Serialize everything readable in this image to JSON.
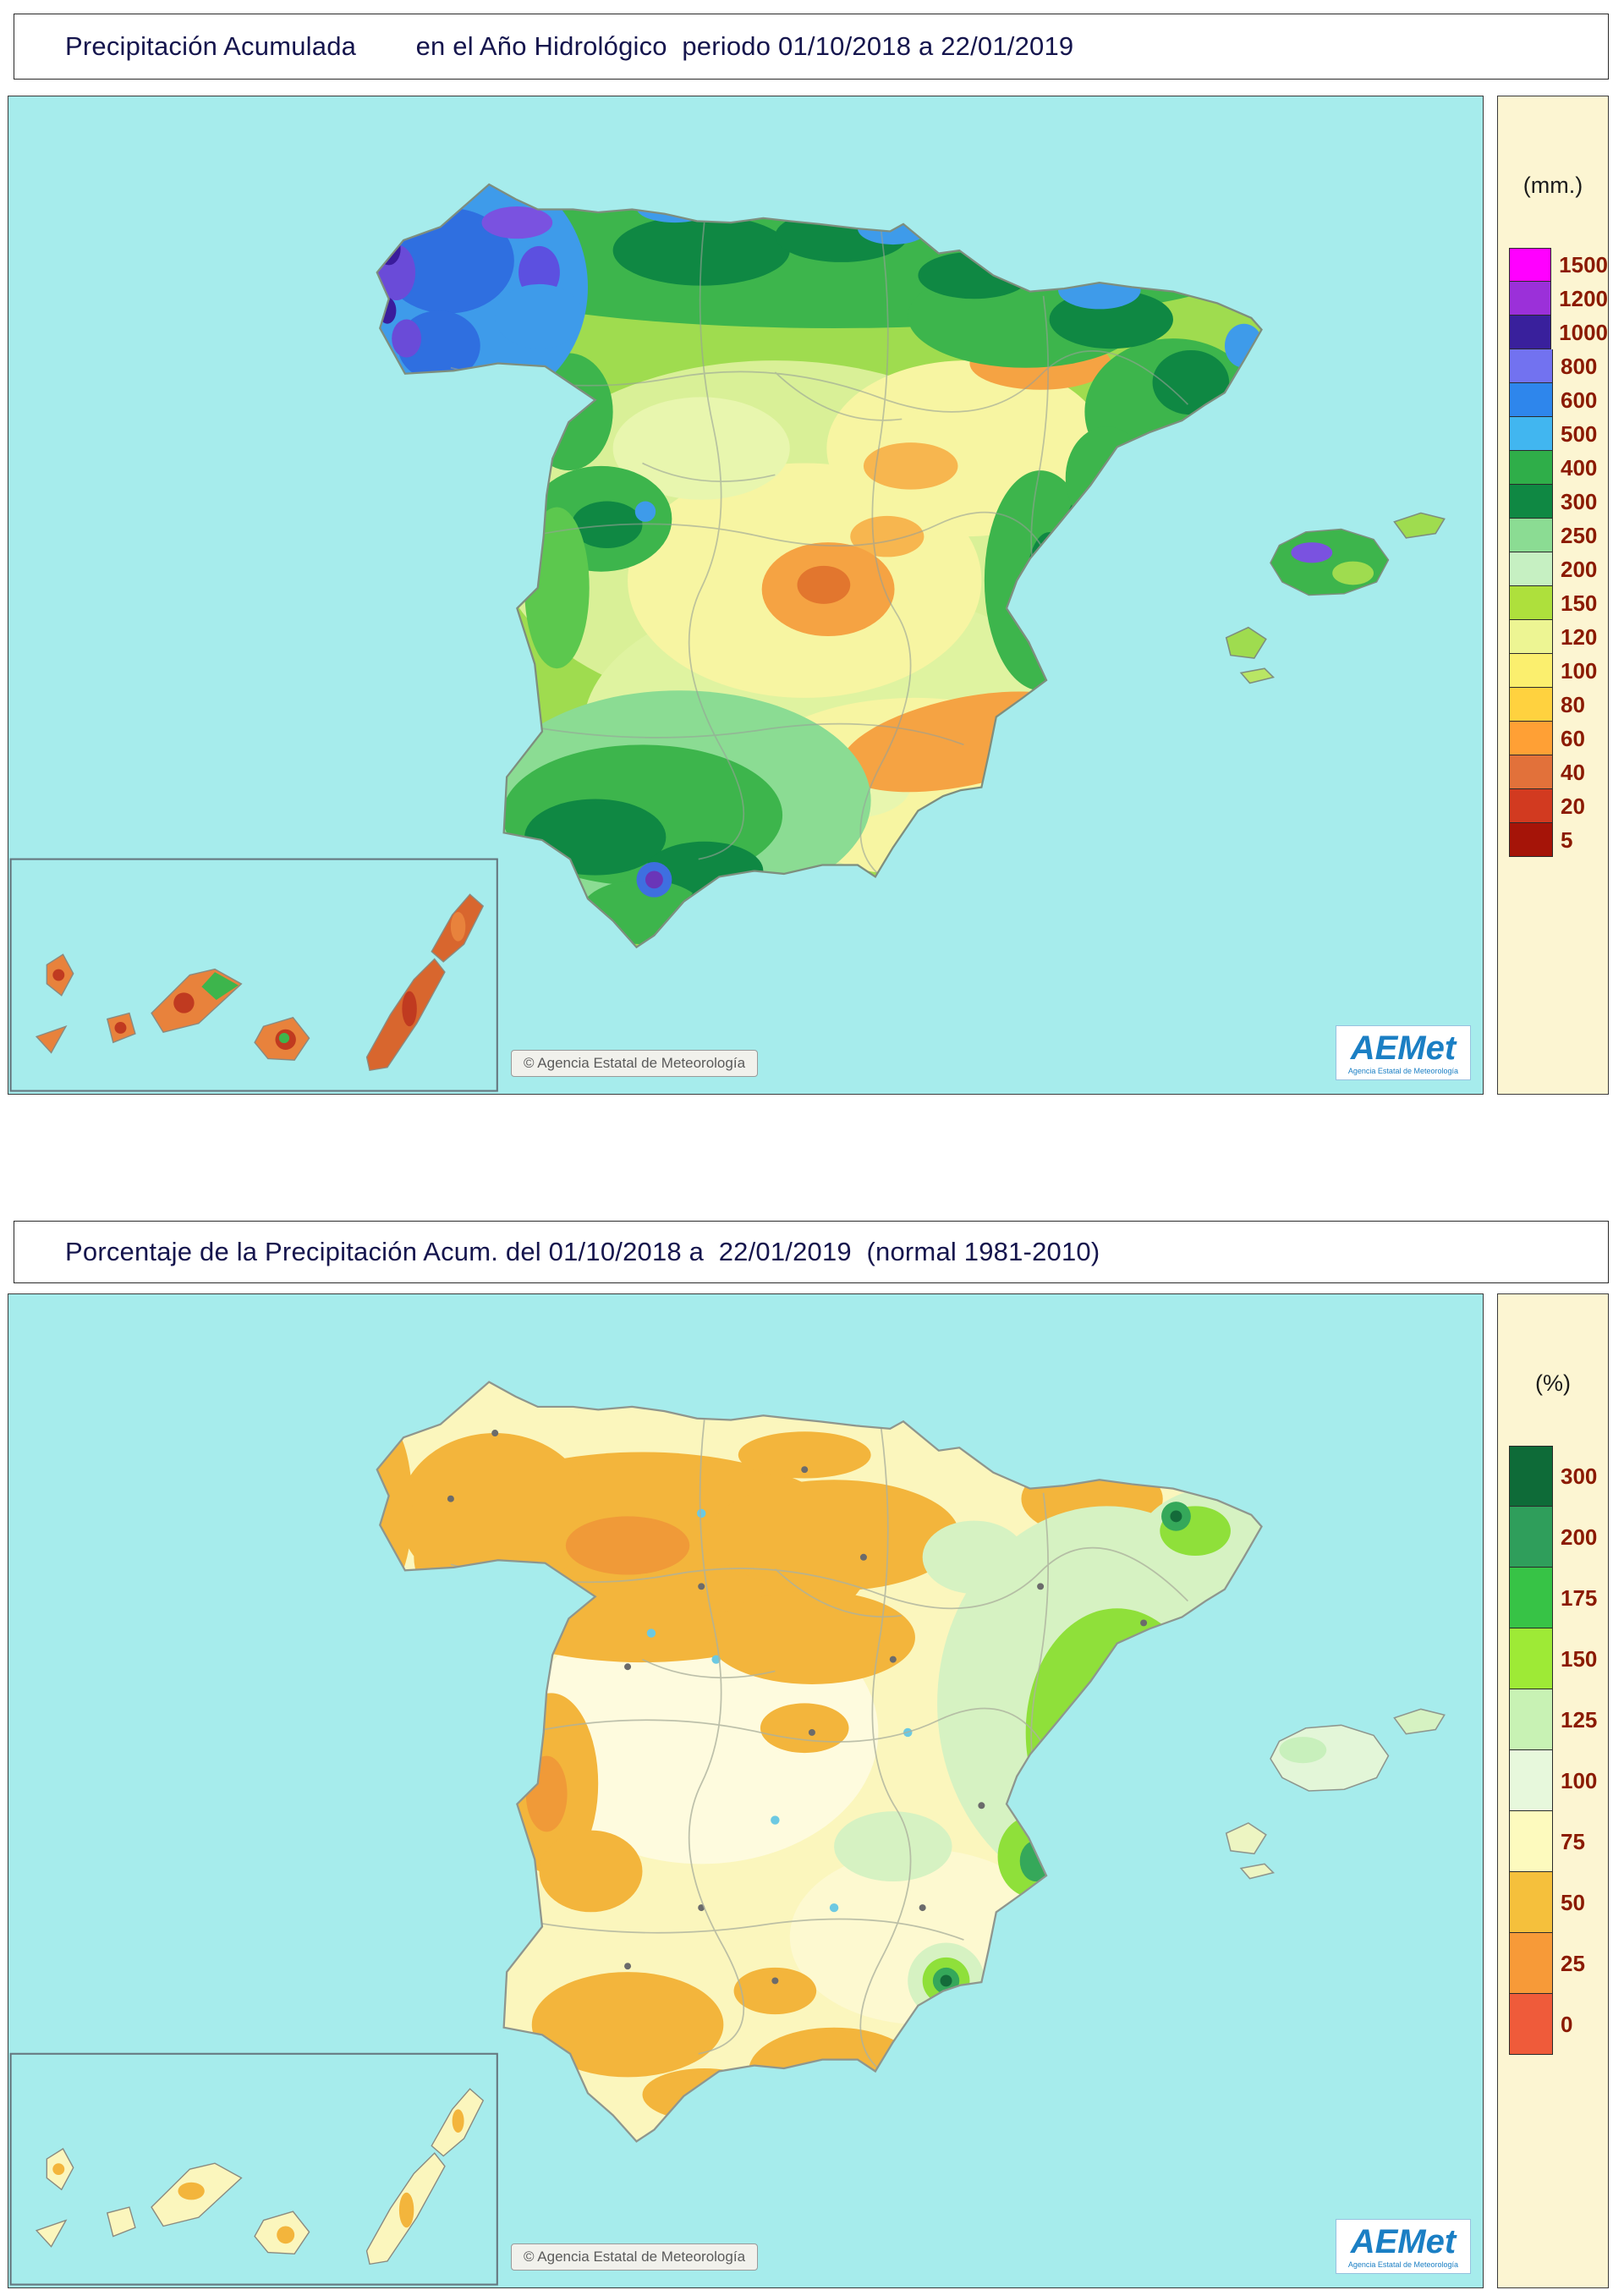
{
  "colors": {
    "sea": "#A6ECEC",
    "legend_bg": "#FCF5D2",
    "legend_number": "#8B1A00",
    "title_text": "#15154d"
  },
  "header1": {
    "title": "Precipitación Acumulada        en el Año Hidrológico  periodo 01/10/2018 a 22/01/2019"
  },
  "header2": {
    "title": "Porcentaje de la Precipitación Acum. del 01/10/2018 a  22/01/2019  (normal 1981-2010)"
  },
  "map1": {
    "legend_unit": "(mm.)",
    "attribution": "© Agencia Estatal de Meteorología",
    "legend": [
      {
        "value": "1500",
        "color": "#FF00FF"
      },
      {
        "value": "1200",
        "color": "#9B30D9"
      },
      {
        "value": "1000",
        "color": "#39209C"
      },
      {
        "value": "800",
        "color": "#7272F0"
      },
      {
        "value": "600",
        "color": "#2E86EC"
      },
      {
        "value": "500",
        "color": "#41B6F0"
      },
      {
        "value": "400",
        "color": "#2FAE49"
      },
      {
        "value": "300",
        "color": "#0F8843"
      },
      {
        "value": "250",
        "color": "#8BDC93"
      },
      {
        "value": "200",
        "color": "#C6F0C2"
      },
      {
        "value": "150",
        "color": "#AEE03C"
      },
      {
        "value": "120",
        "color": "#EDF593"
      },
      {
        "value": "100",
        "color": "#FBEF6E"
      },
      {
        "value": "80",
        "color": "#FFD23F"
      },
      {
        "value": "60",
        "color": "#FFA035"
      },
      {
        "value": "40",
        "color": "#E2713A"
      },
      {
        "value": "20",
        "color": "#D23A20"
      },
      {
        "value": "5",
        "color": "#A51408"
      }
    ]
  },
  "map2": {
    "legend_unit": "(%)",
    "attribution": "© Agencia Estatal de Meteorología",
    "legend": [
      {
        "value": "300",
        "color": "#0E6B38"
      },
      {
        "value": "200",
        "color": "#2F9E5B"
      },
      {
        "value": "175",
        "color": "#37C346"
      },
      {
        "value": "150",
        "color": "#9EEA36"
      },
      {
        "value": "125",
        "color": "#C8F2B4"
      },
      {
        "value": "100",
        "color": "#E7F8DC"
      },
      {
        "value": "75",
        "color": "#FDFABE"
      },
      {
        "value": "50",
        "color": "#F5C03C"
      },
      {
        "value": "25",
        "color": "#F79A38"
      },
      {
        "value": "0",
        "color": "#EF5B3A"
      }
    ]
  },
  "logo": {
    "text": "AEMet",
    "subtext": "Agencia Estatal de Meteorología"
  }
}
